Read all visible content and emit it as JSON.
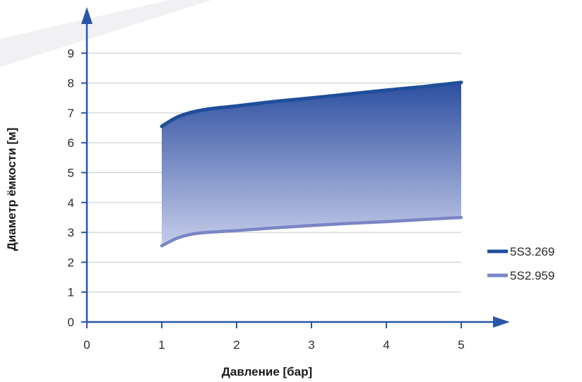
{
  "chart_data": {
    "type": "area",
    "xlabel": "Давление [бар]",
    "ylabel": "Диаметр ёмкости [м]",
    "xlim": [
      0,
      5
    ],
    "ylim": [
      0,
      9
    ],
    "x_ticks": [
      "0",
      "1",
      "2",
      "3",
      "4",
      "5"
    ],
    "y_ticks": [
      "0",
      "1",
      "2",
      "3",
      "4",
      "5",
      "6",
      "7",
      "8",
      "9"
    ],
    "grid": true,
    "legend_position": "right",
    "series": [
      {
        "name": "5S3.269",
        "color": "#1f4e9a",
        "x": [
          1,
          1.2,
          1.4,
          1.6,
          1.8,
          2,
          2.5,
          3,
          3.5,
          4,
          4.5,
          5
        ],
        "y": [
          6.55,
          6.85,
          7.02,
          7.12,
          7.18,
          7.23,
          7.38,
          7.5,
          7.63,
          7.76,
          7.88,
          8.02
        ]
      },
      {
        "name": "5S2.959",
        "color": "#7a86c4",
        "x": [
          1,
          1.2,
          1.4,
          1.6,
          1.8,
          2,
          2.5,
          3,
          3.5,
          4,
          4.5,
          5
        ],
        "y": [
          2.55,
          2.8,
          2.94,
          3.0,
          3.03,
          3.06,
          3.15,
          3.23,
          3.3,
          3.36,
          3.43,
          3.5
        ]
      }
    ],
    "fill_between": true
  }
}
